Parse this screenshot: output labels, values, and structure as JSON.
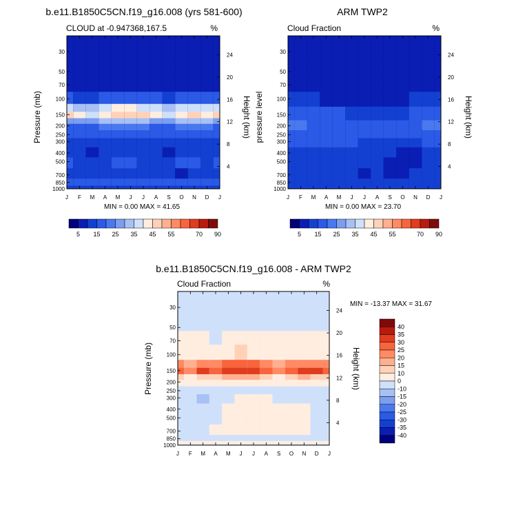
{
  "colors": {
    "palette": [
      "#00007a",
      "#0a1eb4",
      "#1440d2",
      "#2a5ae6",
      "#4a78ee",
      "#7c9ef0",
      "#a8c0f4",
      "#cfe0fa",
      "#ffeee0",
      "#ffd2b8",
      "#ffb08e",
      "#ff8a64",
      "#f8643c",
      "#e03c1e",
      "#b81a0e",
      "#800a0a"
    ]
  },
  "panels": [
    {
      "title": "b.e11.B1850C5CN.f19_g16.008 (yrs 581-600)",
      "left_label": "CLOUD at -0.947368,167.5",
      "right_label": "%",
      "ylabel": "Pressure (mb)",
      "y2label": "Height (km)",
      "stats": "MIN =   0.00 MAX =  41.65",
      "colorbar_labels": [
        "5",
        "15",
        "25",
        "35",
        "45",
        "55",
        "70",
        "90"
      ]
    },
    {
      "title": "ARM TWP2",
      "left_label": "Cloud Fraction",
      "right_label": "%",
      "ylabel": "pressure level",
      "y2label": "Height (km)",
      "stats": "MIN =   0.00 MAX =  23.70",
      "colorbar_labels": [
        "5",
        "15",
        "25",
        "35",
        "45",
        "55",
        "70",
        "90"
      ]
    },
    {
      "title": "b.e11.B1850C5CN.f19_g16.008 - ARM TWP2",
      "left_label": "Cloud Fraction",
      "right_label": "%",
      "ylabel": "Pressure (mb)",
      "y2label": "Height (km)",
      "stats": "MIN = -13.37 MAX =  31.67",
      "colorbar_labels": [
        "40",
        "35",
        "30",
        "25",
        "20",
        "15",
        "10",
        "0",
        "-10",
        "-15",
        "-20",
        "-25",
        "-30",
        "-35",
        "-40"
      ]
    }
  ],
  "chart_data": [
    {
      "type": "heatmap",
      "title": "b.e11.B1850C5CN.f19_g16.008 (yrs 581-600)",
      "xlabel": "",
      "ylabel": "Pressure (mb)",
      "y2label": "Height (km)",
      "x": [
        "J",
        "F",
        "M",
        "A",
        "M",
        "J",
        "J",
        "A",
        "S",
        "O",
        "N",
        "D",
        "J"
      ],
      "y_ticks": [
        30,
        50,
        70,
        100,
        150,
        200,
        250,
        300,
        400,
        500,
        700,
        850,
        1000
      ],
      "y2_ticks": [
        24,
        20,
        16,
        12,
        8,
        4
      ],
      "y_log": true,
      "levels": [
        0,
        5,
        10,
        15,
        20,
        25,
        30,
        35,
        40,
        45,
        50,
        55,
        60,
        70,
        80,
        90
      ],
      "rows": [
        {
          "p": 30,
          "v": [
            2,
            2,
            2,
            2,
            2,
            2,
            2,
            2,
            2,
            2,
            2,
            2,
            2
          ]
        },
        {
          "p": 50,
          "v": [
            2,
            2,
            2,
            2,
            2,
            2,
            2,
            2,
            2,
            2,
            2,
            2,
            2
          ]
        },
        {
          "p": 70,
          "v": [
            3,
            3,
            3,
            3,
            3,
            3,
            3,
            3,
            3,
            3,
            3,
            3,
            3
          ]
        },
        {
          "p": 100,
          "v": [
            10,
            8,
            9,
            11,
            12,
            12,
            11,
            10,
            9,
            11,
            12,
            10,
            10
          ]
        },
        {
          "p": 130,
          "v": [
            30,
            28,
            27,
            33,
            35,
            35,
            34,
            30,
            25,
            32,
            33,
            30,
            30
          ]
        },
        {
          "p": 150,
          "v": [
            40,
            36,
            34,
            38,
            41,
            41,
            40,
            36,
            30,
            38,
            41,
            39,
            40
          ]
        },
        {
          "p": 180,
          "v": [
            24,
            20,
            22,
            26,
            28,
            28,
            27,
            24,
            20,
            26,
            28,
            26,
            24
          ]
        },
        {
          "p": 200,
          "v": [
            14,
            12,
            13,
            15,
            16,
            16,
            15,
            14,
            12,
            15,
            16,
            15,
            14
          ]
        },
        {
          "p": 250,
          "v": [
            10,
            10,
            10,
            10,
            11,
            11,
            10,
            10,
            10,
            10,
            11,
            10,
            10
          ]
        },
        {
          "p": 300,
          "v": [
            8,
            8,
            7,
            8,
            9,
            9,
            8,
            8,
            8,
            8,
            9,
            8,
            8
          ]
        },
        {
          "p": 400,
          "v": [
            7,
            6,
            3,
            6,
            7,
            7,
            7,
            7,
            4,
            7,
            7,
            7,
            7
          ]
        },
        {
          "p": 500,
          "v": [
            10,
            9,
            8,
            9,
            11,
            11,
            9,
            8,
            8,
            10,
            11,
            9,
            10
          ]
        },
        {
          "p": 700,
          "v": [
            7,
            7,
            7,
            6,
            6,
            6,
            6,
            6,
            6,
            2,
            6,
            6,
            7
          ]
        },
        {
          "p": 850,
          "v": [
            12,
            12,
            12,
            12,
            12,
            12,
            12,
            12,
            12,
            12,
            12,
            12,
            12
          ]
        },
        {
          "p": 1000,
          "v": [
            6,
            6,
            6,
            6,
            6,
            6,
            6,
            6,
            6,
            6,
            6,
            6,
            6
          ]
        }
      ]
    },
    {
      "type": "heatmap",
      "title": "ARM TWP2",
      "xlabel": "",
      "ylabel": "pressure level",
      "y2label": "Height (km)",
      "x": [
        "J",
        "F",
        "M",
        "A",
        "M",
        "J",
        "J",
        "A",
        "S",
        "O",
        "N",
        "D",
        "J"
      ],
      "y_ticks": [
        30,
        50,
        70,
        100,
        150,
        200,
        250,
        300,
        400,
        500,
        700,
        850,
        1000
      ],
      "y2_ticks": [
        24,
        20,
        16,
        12,
        8,
        4
      ],
      "y_log": true,
      "levels": [
        0,
        5,
        10,
        15,
        20,
        25,
        30,
        35,
        40,
        45,
        50,
        55,
        60,
        70,
        80,
        90
      ],
      "rows": [
        {
          "p": 30,
          "v": [
            2,
            2,
            2,
            2,
            2,
            2,
            2,
            2,
            2,
            2,
            2,
            2,
            2
          ]
        },
        {
          "p": 50,
          "v": [
            2,
            2,
            2,
            2,
            2,
            2,
            2,
            2,
            2,
            2,
            2,
            2,
            2
          ]
        },
        {
          "p": 70,
          "v": [
            3,
            3,
            3,
            3,
            3,
            3,
            3,
            3,
            3,
            3,
            3,
            3,
            3
          ]
        },
        {
          "p": 100,
          "v": [
            8,
            6,
            5,
            4,
            4,
            3,
            3,
            3,
            3,
            4,
            6,
            8,
            9
          ]
        },
        {
          "p": 150,
          "v": [
            12,
            12,
            10,
            10,
            10,
            9,
            9,
            8,
            6,
            8,
            10,
            11,
            12
          ]
        },
        {
          "p": 200,
          "v": [
            15,
            18,
            13,
            13,
            11,
            10,
            11,
            12,
            13,
            12,
            13,
            15,
            16
          ]
        },
        {
          "p": 250,
          "v": [
            12,
            14,
            12,
            12,
            11,
            11,
            11,
            11,
            11,
            10,
            11,
            12,
            12
          ]
        },
        {
          "p": 300,
          "v": [
            10,
            10,
            10,
            10,
            10,
            10,
            9,
            9,
            9,
            8,
            9,
            10,
            10
          ]
        },
        {
          "p": 400,
          "v": [
            8,
            8,
            9,
            9,
            9,
            9,
            8,
            8,
            5,
            3,
            3,
            8,
            9
          ]
        },
        {
          "p": 500,
          "v": [
            8,
            8,
            9,
            9,
            9,
            9,
            8,
            8,
            4,
            3,
            3,
            8,
            8
          ]
        },
        {
          "p": 700,
          "v": [
            6,
            6,
            7,
            7,
            7,
            6,
            2,
            5,
            4,
            3,
            5,
            6,
            6
          ]
        },
        {
          "p": 850,
          "v": [
            7,
            7,
            7,
            7,
            7,
            7,
            7,
            7,
            7,
            7,
            7,
            7,
            7
          ]
        },
        {
          "p": 1000,
          "v": [
            6,
            6,
            6,
            6,
            6,
            6,
            6,
            6,
            6,
            6,
            6,
            6,
            6
          ]
        }
      ]
    },
    {
      "type": "heatmap",
      "title": "b.e11.B1850C5CN.f19_g16.008 - ARM TWP2",
      "xlabel": "",
      "ylabel": "Pressure (mb)",
      "y2label": "Height (km)",
      "x": [
        "J",
        "F",
        "M",
        "A",
        "M",
        "J",
        "J",
        "A",
        "S",
        "O",
        "N",
        "D",
        "J"
      ],
      "y_ticks": [
        30,
        50,
        70,
        100,
        150,
        200,
        250,
        300,
        400,
        500,
        700,
        850,
        1000
      ],
      "y2_ticks": [
        24,
        20,
        16,
        12,
        8,
        4
      ],
      "y_log": true,
      "levels": [
        -40,
        -35,
        -30,
        -25,
        -20,
        -15,
        -10,
        0,
        10,
        15,
        20,
        25,
        30,
        35,
        40
      ],
      "rows": [
        {
          "p": 30,
          "v": [
            -2,
            -2,
            -2,
            -2,
            -2,
            -2,
            -2,
            -2,
            -2,
            -2,
            -2,
            -2,
            -2
          ]
        },
        {
          "p": 50,
          "v": [
            -2,
            -2,
            -2,
            -2,
            -2,
            -2,
            -2,
            -2,
            -2,
            -2,
            -2,
            -2,
            -2
          ]
        },
        {
          "p": 60,
          "v": [
            2,
            2,
            1,
            -1,
            2,
            2,
            2,
            2,
            2,
            2,
            2,
            2,
            2
          ]
        },
        {
          "p": 100,
          "v": [
            6,
            7,
            8,
            9,
            9,
            10,
            9,
            7,
            6,
            8,
            8,
            7,
            6
          ]
        },
        {
          "p": 130,
          "v": [
            20,
            18,
            22,
            24,
            26,
            26,
            28,
            22,
            16,
            22,
            24,
            22,
            20
          ]
        },
        {
          "p": 150,
          "v": [
            28,
            24,
            30,
            26,
            30,
            30,
            31,
            26,
            20,
            28,
            30,
            30,
            28
          ]
        },
        {
          "p": 180,
          "v": [
            12,
            9,
            14,
            14,
            16,
            16,
            15,
            12,
            8,
            14,
            16,
            14,
            12
          ]
        },
        {
          "p": 200,
          "v": [
            3,
            2,
            3,
            4,
            5,
            5,
            4,
            3,
            2,
            4,
            5,
            4,
            3
          ]
        },
        {
          "p": 250,
          "v": [
            -2,
            -3,
            -2,
            -2,
            -1,
            -1,
            -1,
            -1,
            -1,
            -2,
            -2,
            -2,
            -2
          ]
        },
        {
          "p": 300,
          "v": [
            -2,
            -5,
            -12,
            -2,
            -1,
            1,
            1,
            1,
            -1,
            -2,
            -2,
            -2,
            -2
          ]
        },
        {
          "p": 400,
          "v": [
            -2,
            -3,
            -5,
            -2,
            1,
            2,
            2,
            2,
            1,
            1,
            1,
            -1,
            -2
          ]
        },
        {
          "p": 500,
          "v": [
            -2,
            -2,
            -2,
            -1,
            1,
            3,
            5,
            3,
            2,
            3,
            2,
            -2,
            -2
          ]
        },
        {
          "p": 700,
          "v": [
            -1,
            -1,
            -1,
            1,
            1,
            2,
            2,
            2,
            2,
            2,
            1,
            -1,
            -1
          ]
        },
        {
          "p": 850,
          "v": [
            -1,
            -1,
            -1,
            -1,
            -1,
            -1,
            -1,
            -1,
            -1,
            -1,
            -1,
            -1,
            -1
          ]
        },
        {
          "p": 950,
          "v": [
            2,
            2,
            2,
            2,
            2,
            2,
            2,
            2,
            2,
            2,
            2,
            2,
            2
          ]
        },
        {
          "p": 1000,
          "v": [
            -1,
            -1,
            -1,
            -1,
            -1,
            -1,
            -1,
            -1,
            -1,
            -1,
            -1,
            -1,
            -1
          ]
        }
      ]
    }
  ]
}
